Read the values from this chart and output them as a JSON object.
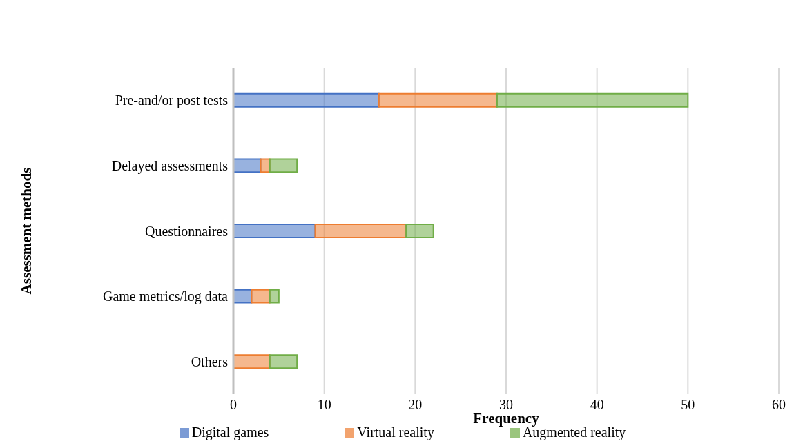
{
  "chart_data": {
    "type": "bar",
    "orientation": "horizontal",
    "stacked": true,
    "xlabel": "Frequency",
    "ylabel": "Assessment methods",
    "categories": [
      "Pre-and/or post tests",
      "Delayed assessments",
      "Questionnaires",
      "Game metrics/log data",
      "Others"
    ],
    "series": [
      {
        "name": "Digital games",
        "color": "#4472c4",
        "values": [
          16,
          3,
          9,
          2,
          0
        ]
      },
      {
        "name": "Virtual reality",
        "color": "#ed7d31",
        "values": [
          13,
          1,
          10,
          2,
          4
        ]
      },
      {
        "name": "Augmented reality",
        "color": "#70ad47",
        "values": [
          21,
          3,
          3,
          1,
          3
        ]
      }
    ],
    "xlim": [
      0,
      60
    ],
    "xticks": [
      0,
      10,
      20,
      30,
      40,
      50,
      60
    ],
    "grid": "x",
    "legend": "bottom"
  }
}
